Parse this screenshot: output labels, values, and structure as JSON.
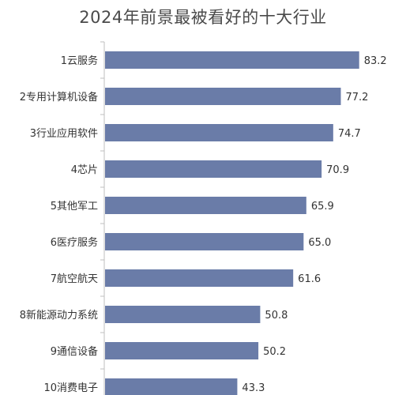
{
  "chart_data": {
    "type": "bar",
    "orientation": "horizontal",
    "title": "2024年前景最被看好的十大行业",
    "categories": [
      "1云服务",
      "2专用计算机设备",
      "3行业应用软件",
      "4芯片",
      "5其他军工",
      "6医疗服务",
      "7航空航天",
      "8新能源动力系统",
      "9通信设备",
      "10消费电子"
    ],
    "values": [
      83.2,
      77.2,
      74.7,
      70.9,
      65.9,
      65.0,
      61.6,
      50.8,
      50.2,
      43.3
    ],
    "value_labels": [
      "83.2",
      "77.2",
      "74.7",
      "70.9",
      "65.9",
      "65.0",
      "61.6",
      "50.8",
      "50.2",
      "43.3"
    ],
    "xlim": [
      0,
      90
    ],
    "grid": false,
    "bar_color": "#6a7ca8",
    "axis_color": "#bfbfbf"
  }
}
